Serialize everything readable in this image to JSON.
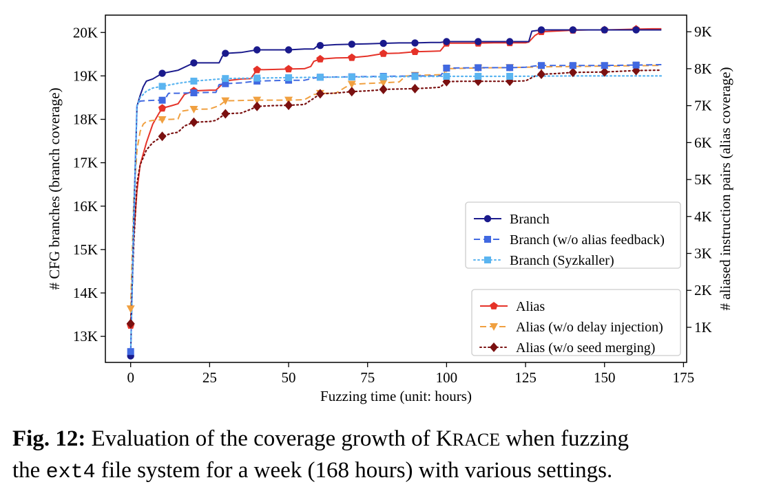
{
  "chart_data": {
    "type": "line",
    "xlabel": "Fuzzing time (unit: hours)",
    "ylabel_left": "# CFG branches (branch coverage)",
    "ylabel_right": "# aliased instruction pairs (alias coverage)",
    "xlim": [
      -8,
      176
    ],
    "xticks": [
      0,
      25,
      50,
      75,
      100,
      125,
      150,
      175
    ],
    "xtick_labels": [
      "0",
      "25",
      "50",
      "75",
      "100",
      "125",
      "150",
      "175"
    ],
    "ylim_left": [
      12400,
      20400
    ],
    "yticks_left": [
      13000,
      14000,
      15000,
      16000,
      17000,
      18000,
      19000,
      20000
    ],
    "ytick_labels_left": [
      "13K",
      "14K",
      "15K",
      "16K",
      "17K",
      "18K",
      "19K",
      "20K"
    ],
    "ylim_right": [
      50,
      9450
    ],
    "yticks_right": [
      1000,
      2000,
      3000,
      4000,
      5000,
      6000,
      7000,
      8000,
      9000
    ],
    "ytick_labels_right": [
      "1K",
      "2K",
      "3K",
      "4K",
      "5K",
      "6K",
      "7K",
      "8K",
      "9K"
    ],
    "legend_top_position": "center-right",
    "legend_bottom_position": "bottom-right",
    "series": [
      {
        "name": "Branch",
        "axis": "left",
        "color": "#1a1a8c",
        "style": "solid",
        "marker": "circle",
        "group": "top",
        "x": [
          0,
          1,
          2,
          3,
          4,
          5,
          7,
          10,
          15,
          20,
          25,
          28,
          29,
          30,
          35,
          40,
          45,
          50,
          55,
          58,
          59,
          60,
          65,
          70,
          75,
          80,
          85,
          90,
          95,
          98,
          99,
          100,
          105,
          110,
          115,
          120,
          125,
          126,
          127,
          130,
          135,
          140,
          145,
          150,
          155,
          160,
          165,
          168
        ],
        "y": [
          12550,
          15800,
          18300,
          18550,
          18750,
          18880,
          18930,
          19060,
          19130,
          19300,
          19300,
          19300,
          19450,
          19520,
          19540,
          19600,
          19600,
          19600,
          19620,
          19620,
          19680,
          19700,
          19720,
          19730,
          19740,
          19750,
          19760,
          19760,
          19770,
          19770,
          19780,
          19790,
          19790,
          19790,
          19790,
          19790,
          19790,
          19790,
          20030,
          20060,
          20060,
          20060,
          20060,
          20060,
          20060,
          20060,
          20060,
          20060
        ],
        "marker_x": [
          0,
          10,
          20,
          30,
          40,
          50,
          60,
          70,
          80,
          90,
          100,
          110,
          120,
          130,
          140,
          150,
          160
        ]
      },
      {
        "name": "Branch (w/o alias feedback)",
        "axis": "left",
        "color": "#4169e1",
        "style": "dashed",
        "marker": "square",
        "group": "top",
        "x": [
          0,
          1,
          2,
          3,
          5,
          8,
          10,
          11,
          12,
          15,
          20,
          25,
          27,
          28,
          30,
          35,
          40,
          50,
          55,
          58,
          60,
          70,
          80,
          90,
          98,
          100,
          110,
          120,
          125,
          128,
          130,
          140,
          150,
          160,
          168
        ],
        "y": [
          12650,
          15500,
          18350,
          18420,
          18430,
          18440,
          18440,
          18480,
          18600,
          18600,
          18610,
          18620,
          18620,
          18800,
          18820,
          18840,
          18880,
          18900,
          18900,
          18950,
          18970,
          18980,
          18990,
          19000,
          19000,
          19180,
          19190,
          19190,
          19200,
          19230,
          19240,
          19240,
          19240,
          19250,
          19260
        ],
        "marker_x": [
          0,
          10,
          20,
          30,
          40,
          50,
          60,
          70,
          80,
          90,
          100,
          110,
          120,
          130,
          140,
          150,
          160
        ]
      },
      {
        "name": "Branch (Syzkaller)",
        "axis": "left",
        "color": "#5ab4f0",
        "style": "dotted",
        "marker": "square",
        "group": "top",
        "x": [
          0,
          1,
          2,
          3,
          5,
          7,
          10,
          15,
          20,
          25,
          30,
          40,
          50,
          60,
          70,
          80,
          90,
          100,
          110,
          120,
          130,
          140,
          150,
          160,
          168
        ],
        "y": [
          12600,
          15800,
          18300,
          18500,
          18650,
          18720,
          18760,
          18830,
          18880,
          18910,
          18940,
          18950,
          18960,
          18970,
          18975,
          18980,
          18985,
          18990,
          18990,
          18990,
          18995,
          19000,
          19000,
          19000,
          19000
        ],
        "marker_x": [
          10,
          20,
          30,
          40,
          50,
          60,
          70,
          80,
          90,
          100,
          110,
          120
        ]
      },
      {
        "name": "Alias",
        "axis": "right",
        "color": "#e53228",
        "style": "solid",
        "marker": "pentagon",
        "group": "bottom",
        "x": [
          0,
          1,
          2,
          3,
          5,
          7,
          9,
          10,
          13,
          15,
          17,
          20,
          25,
          27,
          28,
          30,
          35,
          38,
          40,
          45,
          50,
          55,
          57,
          58,
          60,
          65,
          70,
          75,
          80,
          85,
          90,
          95,
          98,
          100,
          105,
          110,
          115,
          120,
          125,
          126,
          128,
          130,
          135,
          140,
          145,
          150,
          155,
          160,
          165,
          168
        ],
        "y": [
          1050,
          3500,
          4700,
          5400,
          6000,
          6500,
          6800,
          6930,
          7000,
          7050,
          7300,
          7400,
          7420,
          7420,
          7500,
          7670,
          7720,
          7730,
          7970,
          7980,
          7990,
          8000,
          8060,
          8200,
          8260,
          8290,
          8300,
          8340,
          8410,
          8420,
          8460,
          8470,
          8480,
          8690,
          8690,
          8690,
          8700,
          8700,
          8700,
          8720,
          8900,
          9000,
          9020,
          9040,
          9050,
          9050,
          9060,
          9070,
          9080,
          9080
        ],
        "marker_x": [
          0,
          10,
          20,
          30,
          40,
          50,
          60,
          70,
          80,
          90,
          100,
          110,
          120,
          130,
          140,
          150,
          160
        ]
      },
      {
        "name": "Alias (w/o delay injection)",
        "axis": "right",
        "color": "#f0a040",
        "style": "dashed",
        "marker": "triangle-down",
        "group": "bottom",
        "x": [
          0,
          1,
          2,
          3,
          4,
          5,
          7,
          10,
          13,
          15,
          16,
          20,
          25,
          28,
          30,
          35,
          40,
          45,
          50,
          55,
          58,
          60,
          65,
          68,
          70,
          75,
          80,
          85,
          87,
          90,
          95,
          99,
          100,
          105,
          110,
          120,
          130,
          140,
          150,
          160,
          168
        ],
        "y": [
          1500,
          4500,
          5800,
          6300,
          6500,
          6570,
          6600,
          6620,
          6630,
          6640,
          6850,
          6900,
          6910,
          7000,
          7130,
          7140,
          7150,
          7150,
          7150,
          7160,
          7300,
          7330,
          7340,
          7500,
          7580,
          7600,
          7620,
          7640,
          7800,
          7820,
          7830,
          7840,
          8000,
          8010,
          8020,
          8030,
          8050,
          8060,
          8070,
          8080,
          8090
        ],
        "marker_x": [
          0,
          10,
          20,
          30,
          40,
          50,
          60,
          70,
          80,
          90,
          100,
          110,
          120,
          130,
          140,
          150,
          160
        ]
      },
      {
        "name": "Alias (w/o seed merging)",
        "axis": "right",
        "color": "#7a1010",
        "style": "dotted",
        "marker": "diamond",
        "group": "bottom",
        "x": [
          0,
          1,
          2,
          3,
          5,
          7,
          10,
          13,
          15,
          17,
          20,
          25,
          27,
          30,
          35,
          38,
          40,
          45,
          50,
          55,
          58,
          60,
          65,
          70,
          75,
          78,
          80,
          85,
          90,
          95,
          98,
          100,
          105,
          110,
          115,
          120,
          125,
          128,
          130,
          135,
          140,
          150,
          160,
          168
        ],
        "y": [
          1100,
          3300,
          4900,
          5400,
          5800,
          6000,
          6170,
          6250,
          6280,
          6450,
          6550,
          6570,
          6600,
          6780,
          6800,
          6900,
          6980,
          7000,
          7010,
          7030,
          7200,
          7320,
          7340,
          7380,
          7400,
          7420,
          7440,
          7450,
          7460,
          7480,
          7500,
          7650,
          7660,
          7660,
          7660,
          7660,
          7670,
          7800,
          7850,
          7870,
          7900,
          7910,
          7950,
          7960
        ],
        "marker_x": [
          0,
          10,
          20,
          30,
          40,
          50,
          60,
          70,
          80,
          90,
          100,
          110,
          120,
          130,
          140,
          150,
          160
        ]
      }
    ]
  },
  "caption": {
    "label": "Fig. 12:",
    "text_before": "Evaluation of the coverage growth of",
    "system_initial": "K",
    "system_rest": "RACE",
    "text_mid": "when fuzzing",
    "line2_before": "the",
    "filesystem": "ext4",
    "line2_after": "file system for a week (168 hours) with various settings."
  }
}
